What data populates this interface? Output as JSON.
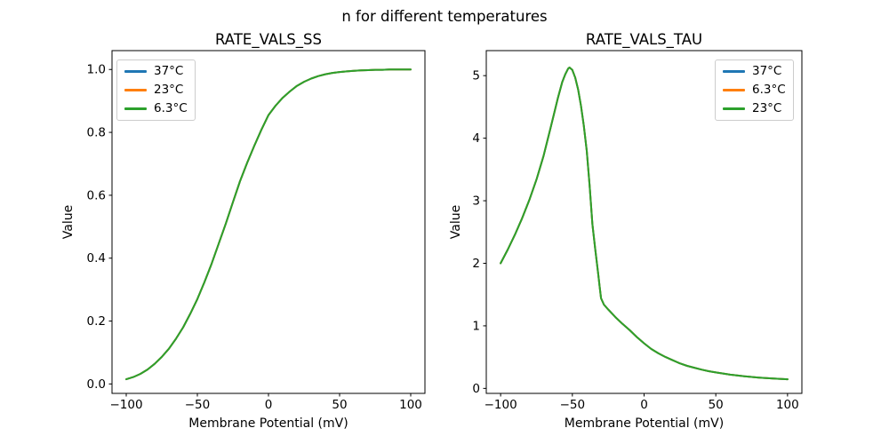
{
  "figure": {
    "title": "n for different temperatures",
    "background_color": "#ffffff",
    "text_color": "#000000"
  },
  "chart_data": [
    {
      "type": "line",
      "title": "RATE_VALS_SS",
      "xlabel": "Membrane Potential (mV)",
      "ylabel": "Value",
      "xlim": [
        -110,
        110
      ],
      "ylim": [
        -0.03,
        1.06
      ],
      "xticks": [
        -100,
        -50,
        0,
        50,
        100
      ],
      "xtick_labels": [
        "−100",
        "−50",
        "0",
        "50",
        "100"
      ],
      "yticks": [
        0.0,
        0.2,
        0.4,
        0.6,
        0.8,
        1.0
      ],
      "ytick_labels": [
        "0.0",
        "0.2",
        "0.4",
        "0.6",
        "0.8",
        "1.0"
      ],
      "grid": false,
      "legend_position": "upper left",
      "note": "all three temperature series overlap exactly; green (last drawn) is visible",
      "x": [
        -100,
        -95,
        -90,
        -85,
        -80,
        -75,
        -70,
        -65,
        -60,
        -55,
        -50,
        -45,
        -40,
        -35,
        -30,
        -25,
        -20,
        -15,
        -10,
        -5,
        0,
        5,
        10,
        15,
        20,
        25,
        30,
        35,
        40,
        45,
        50,
        55,
        60,
        65,
        70,
        75,
        80,
        85,
        90,
        95,
        100
      ],
      "series": [
        {
          "name": "37°C",
          "color": "#1f77b4",
          "values": [
            0.015,
            0.022,
            0.032,
            0.046,
            0.064,
            0.086,
            0.112,
            0.144,
            0.18,
            0.223,
            0.27,
            0.324,
            0.382,
            0.446,
            0.51,
            0.578,
            0.645,
            0.703,
            0.757,
            0.808,
            0.855,
            0.885,
            0.91,
            0.93,
            0.948,
            0.961,
            0.971,
            0.979,
            0.985,
            0.989,
            0.992,
            0.994,
            0.996,
            0.997,
            0.998,
            0.999,
            0.999,
            1.0,
            1.0,
            1.0,
            1.0
          ]
        },
        {
          "name": "23°C",
          "color": "#ff7f0e",
          "values": [
            0.015,
            0.022,
            0.032,
            0.046,
            0.064,
            0.086,
            0.112,
            0.144,
            0.18,
            0.223,
            0.27,
            0.324,
            0.382,
            0.446,
            0.51,
            0.578,
            0.645,
            0.703,
            0.757,
            0.808,
            0.855,
            0.885,
            0.91,
            0.93,
            0.948,
            0.961,
            0.971,
            0.979,
            0.985,
            0.989,
            0.992,
            0.994,
            0.996,
            0.997,
            0.998,
            0.999,
            0.999,
            1.0,
            1.0,
            1.0,
            1.0
          ]
        },
        {
          "name": "6.3°C",
          "color": "#2ca02c",
          "values": [
            0.015,
            0.022,
            0.032,
            0.046,
            0.064,
            0.086,
            0.112,
            0.144,
            0.18,
            0.223,
            0.27,
            0.324,
            0.382,
            0.446,
            0.51,
            0.578,
            0.645,
            0.703,
            0.757,
            0.808,
            0.855,
            0.885,
            0.91,
            0.93,
            0.948,
            0.961,
            0.971,
            0.979,
            0.985,
            0.989,
            0.992,
            0.994,
            0.996,
            0.997,
            0.998,
            0.999,
            0.999,
            1.0,
            1.0,
            1.0,
            1.0
          ]
        }
      ]
    },
    {
      "type": "line",
      "title": "RATE_VALS_TAU",
      "xlabel": "Membrane Potential (mV)",
      "ylabel": "Value",
      "xlim": [
        -110,
        110
      ],
      "ylim": [
        -0.08,
        5.4
      ],
      "xticks": [
        -100,
        -50,
        0,
        50,
        100
      ],
      "xtick_labels": [
        "−100",
        "−50",
        "0",
        "50",
        "100"
      ],
      "yticks": [
        0,
        1,
        2,
        3,
        4,
        5
      ],
      "ytick_labels": [
        "0",
        "1",
        "2",
        "3",
        "4",
        "5"
      ],
      "grid": false,
      "legend_position": "upper right",
      "note": "all three temperature series overlap exactly; peak ~5.13 near -52 mV, sharp kink at -30 mV",
      "x": [
        -100,
        -95,
        -90,
        -85,
        -80,
        -75,
        -70,
        -65,
        -60,
        -57,
        -55,
        -53,
        -52,
        -50,
        -48,
        -46,
        -44,
        -42,
        -40,
        -38,
        -36,
        -34,
        -32,
        -31,
        -30,
        -28,
        -25,
        -20,
        -15,
        -10,
        -5,
        0,
        5,
        10,
        15,
        20,
        25,
        30,
        35,
        40,
        45,
        50,
        60,
        70,
        80,
        90,
        100
      ],
      "series": [
        {
          "name": "37°C",
          "color": "#1f77b4",
          "values": [
            2.0,
            2.22,
            2.46,
            2.72,
            3.01,
            3.34,
            3.72,
            4.18,
            4.65,
            4.9,
            5.02,
            5.11,
            5.13,
            5.09,
            4.97,
            4.78,
            4.52,
            4.2,
            3.8,
            3.25,
            2.62,
            2.22,
            1.83,
            1.63,
            1.44,
            1.34,
            1.26,
            1.14,
            1.03,
            0.93,
            0.82,
            0.72,
            0.63,
            0.56,
            0.5,
            0.45,
            0.4,
            0.36,
            0.33,
            0.3,
            0.275,
            0.255,
            0.22,
            0.193,
            0.172,
            0.157,
            0.146
          ]
        },
        {
          "name": "6.3°C",
          "color": "#ff7f0e",
          "values": [
            2.0,
            2.22,
            2.46,
            2.72,
            3.01,
            3.34,
            3.72,
            4.18,
            4.65,
            4.9,
            5.02,
            5.11,
            5.13,
            5.09,
            4.97,
            4.78,
            4.52,
            4.2,
            3.8,
            3.25,
            2.62,
            2.22,
            1.83,
            1.63,
            1.44,
            1.34,
            1.26,
            1.14,
            1.03,
            0.93,
            0.82,
            0.72,
            0.63,
            0.56,
            0.5,
            0.45,
            0.4,
            0.36,
            0.33,
            0.3,
            0.275,
            0.255,
            0.22,
            0.193,
            0.172,
            0.157,
            0.146
          ]
        },
        {
          "name": "23°C",
          "color": "#2ca02c",
          "values": [
            2.0,
            2.22,
            2.46,
            2.72,
            3.01,
            3.34,
            3.72,
            4.18,
            4.65,
            4.9,
            5.02,
            5.11,
            5.13,
            5.09,
            4.97,
            4.78,
            4.52,
            4.2,
            3.8,
            3.25,
            2.62,
            2.22,
            1.83,
            1.63,
            1.44,
            1.34,
            1.26,
            1.14,
            1.03,
            0.93,
            0.82,
            0.72,
            0.63,
            0.56,
            0.5,
            0.45,
            0.4,
            0.36,
            0.33,
            0.3,
            0.275,
            0.255,
            0.22,
            0.193,
            0.172,
            0.157,
            0.146
          ]
        }
      ]
    }
  ]
}
